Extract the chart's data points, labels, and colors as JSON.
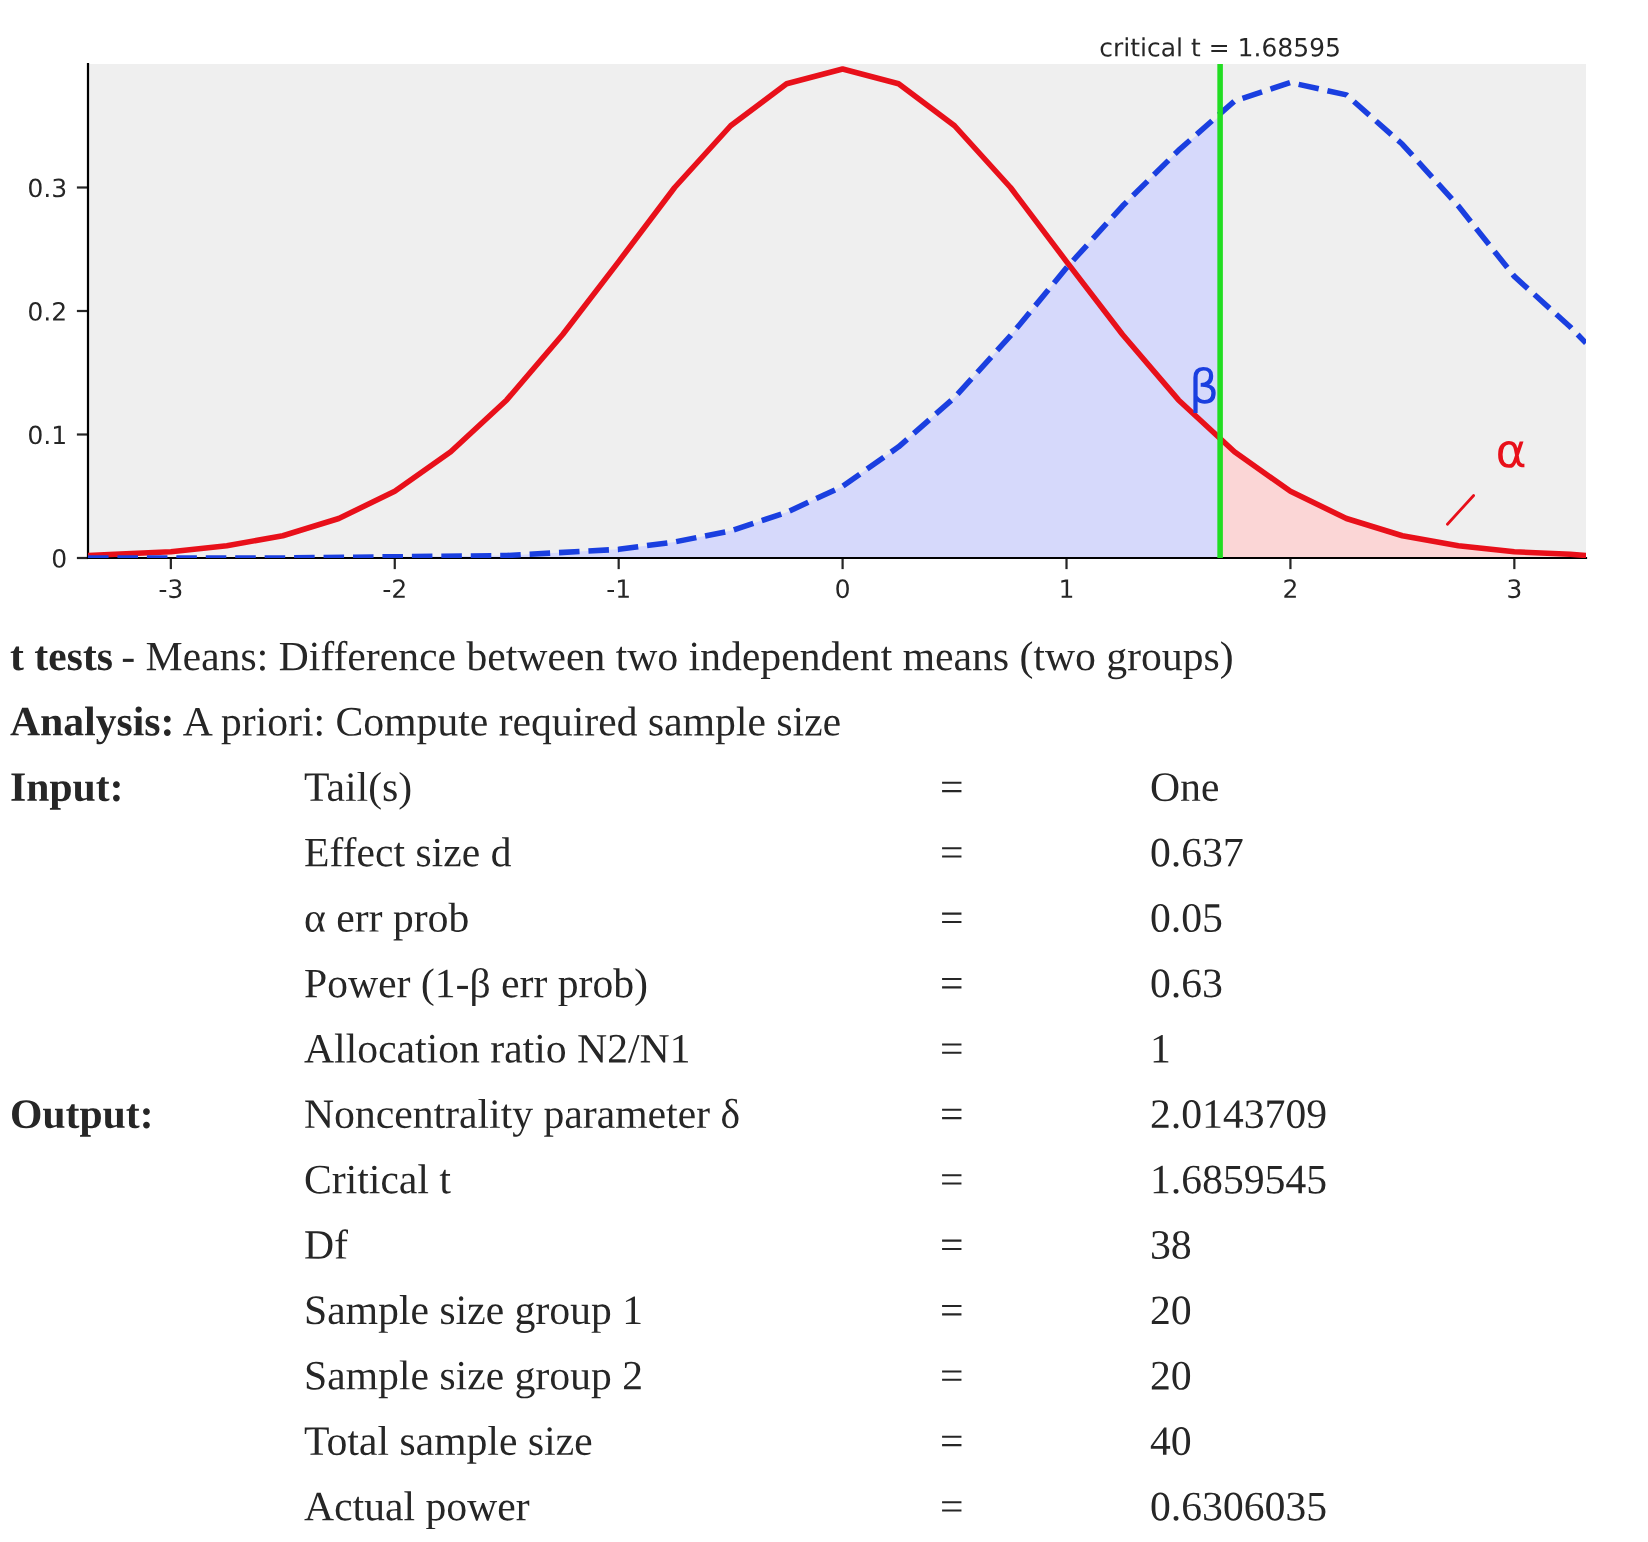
{
  "chart_data": {
    "type": "line",
    "xlim": [
      -3.37,
      3.32
    ],
    "xticks": [
      -3,
      -2,
      -1,
      0,
      1,
      2,
      3
    ],
    "ylim": [
      0,
      0.4
    ],
    "yticks": [
      0,
      0.1,
      0.2,
      0.3
    ],
    "grid": false,
    "legend": false,
    "series": [
      {
        "type": "area",
        "color": "#d6d9fb",
        "x": [
          -3.37,
          -3,
          -2.5,
          -2,
          -1.5,
          -1,
          -0.75,
          -0.5,
          -0.25,
          0,
          0.25,
          0.5,
          0.75,
          1,
          1.25,
          1.5,
          1.686
        ],
        "values": [
          0,
          0,
          0,
          0.001,
          0.002,
          0.007,
          0.013,
          0.022,
          0.037,
          0.058,
          0.09,
          0.13,
          0.18,
          0.235,
          0.285,
          0.33,
          0.358
        ]
      },
      {
        "type": "area",
        "color": "#fbd6d6",
        "x": [
          1.686,
          1.75,
          2,
          2.25,
          2.5,
          2.75,
          3,
          3.25,
          3.32
        ],
        "values": [
          0.097,
          0.086,
          0.054,
          0.032,
          0.018,
          0.01,
          0.005,
          0.003,
          0.002
        ]
      },
      {
        "color": "#e8101a",
        "line_style": "solid",
        "x": [
          -3.37,
          -3.25,
          -3,
          -2.75,
          -2.5,
          -2.25,
          -2,
          -1.75,
          -1.5,
          -1.25,
          -1,
          -0.75,
          -0.5,
          -0.25,
          0,
          0.25,
          0.5,
          0.75,
          1,
          1.25,
          1.5,
          1.75,
          2,
          2.25,
          2.5,
          2.75,
          3,
          3.25,
          3.32
        ],
        "values": [
          0.002,
          0.003,
          0.005,
          0.01,
          0.018,
          0.032,
          0.054,
          0.086,
          0.128,
          0.181,
          0.24,
          0.3,
          0.35,
          0.384,
          0.396,
          0.384,
          0.35,
          0.3,
          0.24,
          0.181,
          0.128,
          0.086,
          0.054,
          0.032,
          0.018,
          0.01,
          0.005,
          0.003,
          0.002
        ]
      },
      {
        "color": "#1a3fe0",
        "line_style": "dashed",
        "x": [
          -3.37,
          -3,
          -2.5,
          -2,
          -1.5,
          -1,
          -0.75,
          -0.5,
          -0.25,
          0,
          0.25,
          0.5,
          0.75,
          1,
          1.25,
          1.5,
          1.75,
          2,
          2.25,
          2.5,
          2.75,
          3,
          3.25,
          3.32
        ],
        "values": [
          0,
          0,
          0,
          0.001,
          0.002,
          0.007,
          0.013,
          0.022,
          0.037,
          0.058,
          0.09,
          0.13,
          0.18,
          0.235,
          0.285,
          0.33,
          0.37,
          0.385,
          0.375,
          0.335,
          0.285,
          0.228,
          0.187,
          0.174
        ]
      }
    ],
    "ref_lines": [
      {
        "axis": "x",
        "value": 1.68595,
        "label": "critical t = 1.68595",
        "color": "#22dd22"
      }
    ],
    "annotations": [
      "β",
      "α",
      "t tests",
      "- Means: Difference between two independent means (two groups)",
      "Analysis:",
      "A priori: Compute required sample size",
      "Input:\tTail(s)\t=\tOne",
      "\tEffect size d\t=\t0.637",
      "\tα err prob\t=\t0.05",
      "\tPower (1-β err prob)\t=\t0.63",
      "\tAllocation ratio N2/N1\t=\t1",
      "Output:\tNoncentrality parameter δ\t=\t2.0143709",
      "\tCritical t\t=\t1.6859545",
      "\tDf\t=\t38",
      "\tSample size group 1\t=\t20",
      "\tSample size group 2\t=\t20",
      "\tTotal sample size\t=\t40",
      "\tActual power\t=\t0.6306035"
    ]
  }
}
